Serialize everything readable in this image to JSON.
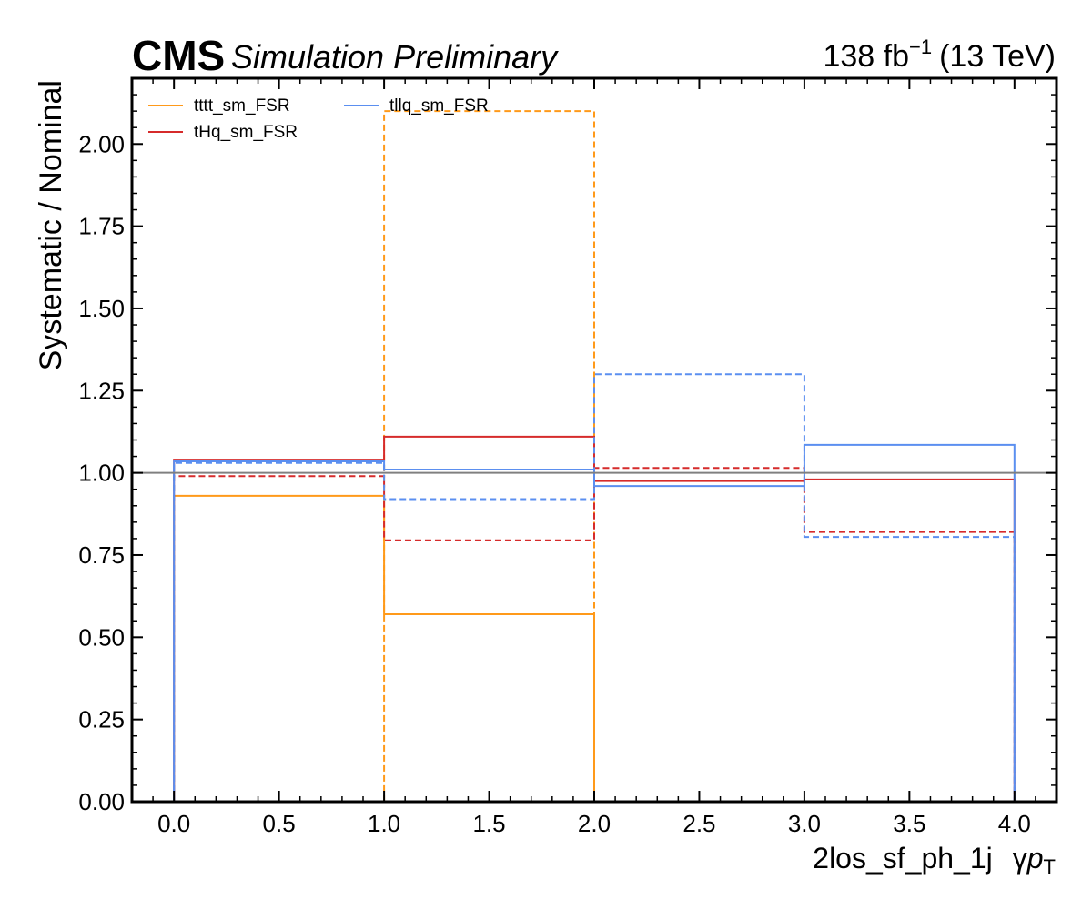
{
  "header": {
    "experiment": "CMS",
    "subtitle": "Simulation Preliminary",
    "lumi_value": "138 fb",
    "lumi_exp": "−1",
    "lumi_energy": "(13 TeV)"
  },
  "colors": {
    "tttt": "#ff9a1a",
    "tHq": "#d62b2b",
    "tllq": "#5b8ff0",
    "reference": "#808080"
  },
  "chart_data": {
    "type": "step",
    "ylabel": "Systematic / Nominal",
    "xlabel_main": "2los_sf_ph_1j",
    "xlabel_gamma": "γ",
    "xlabel_p": "p",
    "xlabel_sub": "T",
    "xlim": [
      -0.2,
      4.2
    ],
    "ylim": [
      0.0,
      2.2
    ],
    "x_ticks": [
      "0.0",
      "0.5",
      "1.0",
      "1.5",
      "2.0",
      "2.5",
      "3.0",
      "3.5",
      "4.0"
    ],
    "y_ticks": [
      "0.00",
      "0.25",
      "0.50",
      "0.75",
      "1.00",
      "1.25",
      "1.50",
      "1.75",
      "2.00"
    ],
    "reference_line": 1.0,
    "bin_edges": [
      0,
      1,
      2,
      3,
      4
    ],
    "legend": {
      "placement": "top-left",
      "entries": [
        {
          "label": "tttt_sm_FSR",
          "color_key": "tttt"
        },
        {
          "label": "tHq_sm_FSR",
          "color_key": "tHq"
        },
        {
          "label": "tllq_sm_FSR",
          "color_key": "tllq"
        }
      ]
    },
    "series": [
      {
        "name": "tttt_sm_FSR",
        "variation": "up",
        "style": "solid",
        "color_key": "tttt",
        "values": [
          0.93,
          0.57,
          0.0,
          0.0
        ]
      },
      {
        "name": "tttt_sm_FSR",
        "variation": "down",
        "style": "dashed",
        "color_key": "tttt",
        "values": [
          0.0,
          2.1,
          0.0,
          0.0
        ]
      },
      {
        "name": "tHq_sm_FSR",
        "variation": "up",
        "style": "solid",
        "color_key": "tHq",
        "values": [
          1.04,
          1.11,
          0.975,
          0.98
        ]
      },
      {
        "name": "tHq_sm_FSR",
        "variation": "down",
        "style": "dashed",
        "color_key": "tHq",
        "values": [
          0.99,
          0.795,
          1.015,
          0.82
        ]
      },
      {
        "name": "tllq_sm_FSR",
        "variation": "up",
        "style": "solid",
        "color_key": "tllq",
        "values": [
          1.035,
          1.01,
          0.96,
          1.085
        ]
      },
      {
        "name": "tllq_sm_FSR",
        "variation": "down",
        "style": "dashed",
        "color_key": "tllq",
        "values": [
          1.03,
          0.92,
          1.3,
          0.805
        ]
      }
    ]
  }
}
